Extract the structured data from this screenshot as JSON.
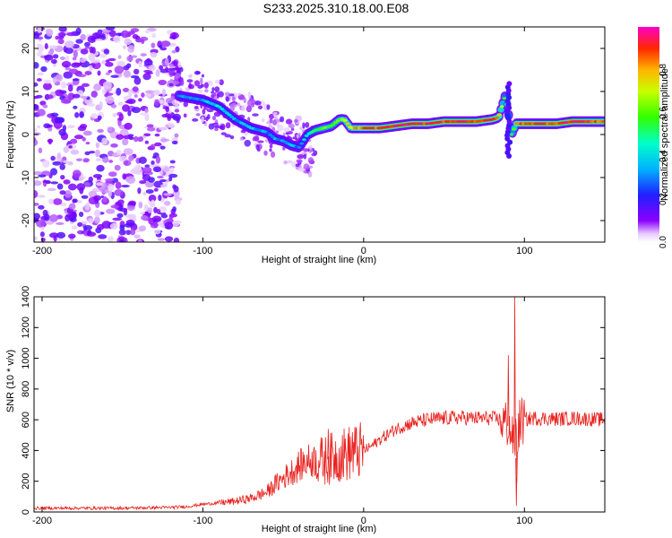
{
  "title": "S233.2025.310.18.00.E08",
  "chart_data": [
    {
      "type": "heatmap",
      "xlabel": "Height of straight line (km)",
      "ylabel": "Frequency (Hz)",
      "xlim": [
        -205,
        150
      ],
      "ylim": [
        -25,
        25
      ],
      "xticks": [
        -200,
        -100,
        0,
        100
      ],
      "yticks": [
        -20,
        -10,
        0,
        10,
        20
      ],
      "colorbar": {
        "label": "Normalized spectral amplitude",
        "range": [
          0,
          1
        ],
        "ticks": [
          0.0,
          0.2,
          0.4,
          0.6,
          0.8
        ],
        "tick_labels": [
          "0.0",
          "0.2",
          "0.4",
          "0.6",
          "0.8"
        ]
      },
      "ridge": {
        "description": "dominant frequency vs height",
        "x": [
          -115,
          -100,
          -90,
          -80,
          -70,
          -60,
          -55,
          -50,
          -45,
          -40,
          -35,
          -30,
          -25,
          -20,
          -15,
          -12,
          -8,
          0,
          10,
          20,
          30,
          40,
          50,
          60,
          70,
          80,
          84,
          88,
          90,
          92,
          95,
          100,
          110,
          120,
          130,
          140,
          150
        ],
        "y": [
          9,
          8,
          6.5,
          3.5,
          1.5,
          0.5,
          -1,
          -1.5,
          -2.5,
          -3,
          0,
          1,
          1.5,
          2,
          3.5,
          3.5,
          1.5,
          1.5,
          1.5,
          2,
          2.5,
          2.5,
          3,
          3,
          3,
          3.5,
          4,
          9,
          5,
          0,
          2.5,
          2.5,
          2.5,
          2.5,
          3,
          3,
          3
        ],
        "amplitude": [
          0.3,
          0.35,
          0.4,
          0.35,
          0.35,
          0.3,
          0.35,
          0.3,
          0.35,
          0.3,
          0.4,
          0.5,
          0.6,
          0.55,
          0.6,
          0.7,
          0.75,
          0.85,
          0.9,
          0.95,
          0.95,
          0.9,
          0.9,
          0.95,
          0.9,
          0.9,
          0.85,
          0.5,
          0.5,
          0.5,
          0.8,
          0.9,
          0.9,
          0.9,
          0.95,
          0.9,
          0.85
        ]
      },
      "noise_region": {
        "x_range": [
          -205,
          -115
        ],
        "y_range": [
          -25,
          25
        ],
        "amplitude_range": [
          0.0,
          0.3
        ]
      }
    },
    {
      "type": "line",
      "xlabel": "Height of straight line (km)",
      "ylabel": "SNR (10 * v/v)",
      "xlim": [
        -205,
        150
      ],
      "ylim": [
        0,
        1400
      ],
      "xticks": [
        -200,
        -100,
        0,
        100
      ],
      "yticks": [
        0,
        200,
        400,
        600,
        800,
        1000,
        1200,
        1400
      ],
      "series": [
        {
          "name": "SNR",
          "color": "#e8221e",
          "x": [
            -205,
            -180,
            -150,
            -120,
            -110,
            -100,
            -90,
            -80,
            -70,
            -60,
            -55,
            -50,
            -45,
            -40,
            -35,
            -30,
            -25,
            -20,
            -15,
            -10,
            -5,
            0,
            5,
            10,
            20,
            30,
            40,
            50,
            60,
            70,
            80,
            85,
            88,
            90,
            92,
            94,
            95,
            96,
            97,
            100,
            105,
            110,
            120,
            130,
            140,
            150
          ],
          "y": [
            25,
            25,
            25,
            30,
            35,
            50,
            60,
            70,
            90,
            130,
            180,
            220,
            260,
            300,
            330,
            340,
            330,
            350,
            370,
            380,
            390,
            400,
            430,
            470,
            540,
            580,
            600,
            610,
            615,
            610,
            610,
            600,
            580,
            560,
            500,
            450,
            350,
            500,
            580,
            600,
            610,
            610,
            605,
            610,
            605,
            600
          ],
          "spikes": [
            {
              "x": -22,
              "y": 540
            },
            {
              "x": -7,
              "y": 520
            },
            {
              "x": 90,
              "y": 1020
            },
            {
              "x": 94,
              "y": 1400
            },
            {
              "x": 95,
              "y": 40
            }
          ]
        }
      ]
    }
  ]
}
